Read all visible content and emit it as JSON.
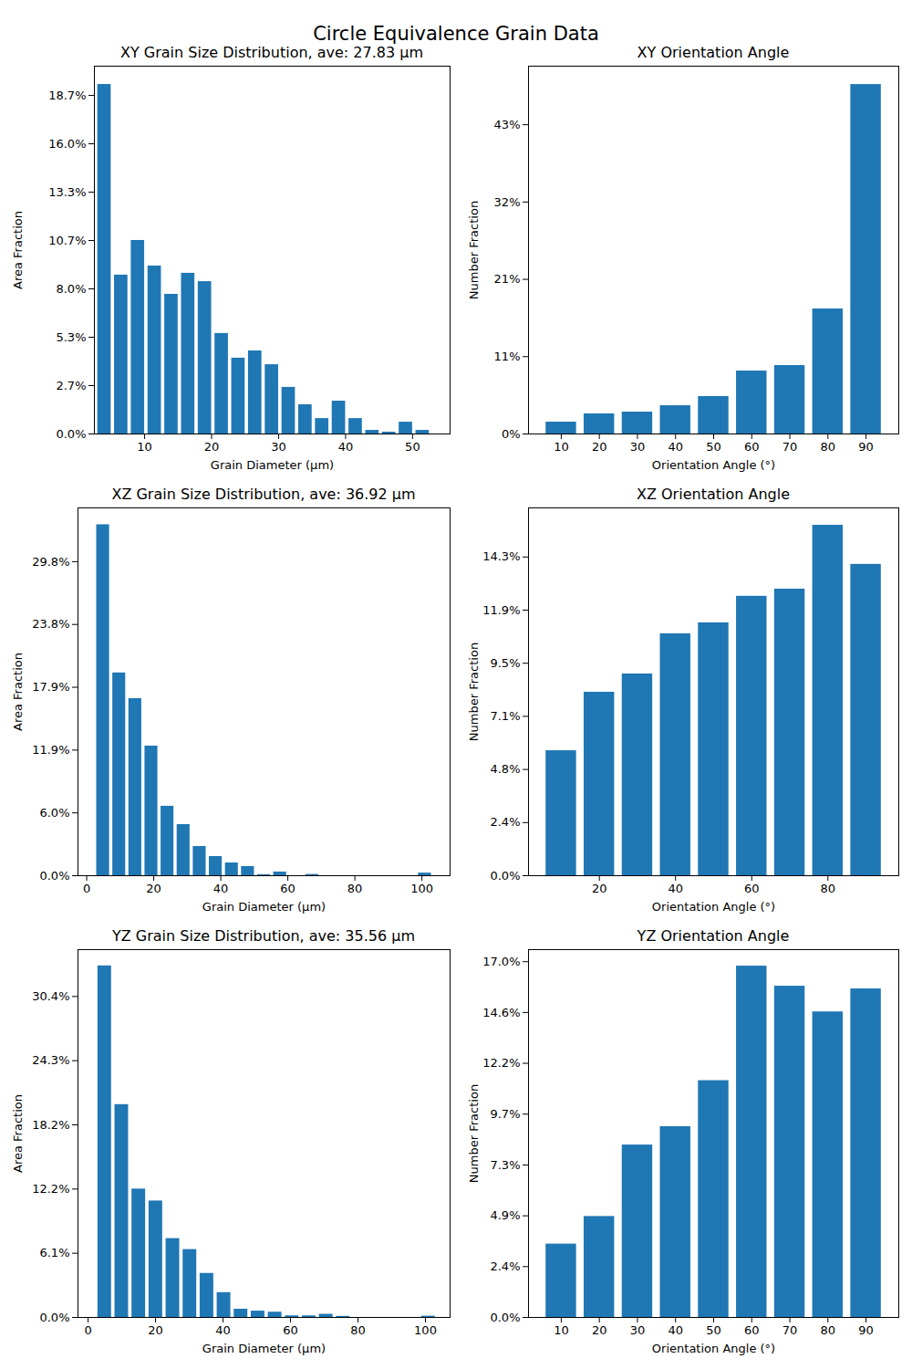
{
  "title": "Circle Equivalence Grain Data",
  "chart_data": [
    {
      "type": "histogram",
      "title": "XY Grain Size Distribution, ave: 27.83 µm",
      "xlabel": "Grain Diameter (µm)",
      "ylabel": "Area Fraction",
      "color": "#1f77b4",
      "bins": [
        2.75,
        5.25,
        7.75,
        10.25,
        12.75,
        15.25,
        17.75,
        20.25,
        22.75,
        25.25,
        27.75,
        30.25,
        32.75,
        35.25,
        37.75,
        40.25,
        42.75,
        45.25,
        47.75,
        50.25,
        52.75
      ],
      "values": [
        19.27,
        8.76,
        10.67,
        9.26,
        7.7,
        8.86,
        8.4,
        5.54,
        4.18,
        4.58,
        3.82,
        2.57,
        1.61,
        0.85,
        1.81,
        0.85,
        0.2,
        0.1,
        0.65,
        0.2
      ],
      "xlim": [
        2.5,
        55.6
      ],
      "xticks": [
        10,
        20,
        30,
        40,
        50
      ],
      "ylim": [
        0,
        20.28
      ],
      "yticks": [
        {
          "value": 0,
          "label": "0.0%"
        },
        {
          "value": 2.667,
          "label": "2.7%"
        },
        {
          "value": 5.333,
          "label": "5.3%"
        },
        {
          "value": 8,
          "label": "8.0%"
        },
        {
          "value": 10.667,
          "label": "10.7%"
        },
        {
          "value": 13.333,
          "label": "13.3%"
        },
        {
          "value": 16,
          "label": "16.0%"
        },
        {
          "value": 18.667,
          "label": "18.7%"
        }
      ]
    },
    {
      "type": "histogram",
      "title": "XY Orientation Angle",
      "xlabel": "Orientation Angle (°)",
      "ylabel": "Number Fraction",
      "color": "#1f77b4",
      "bins": [
        5,
        15,
        25,
        35,
        45,
        55,
        65,
        75,
        85,
        95
      ],
      "values": [
        1.64,
        2.78,
        3.03,
        3.91,
        5.18,
        8.71,
        9.47,
        17.3,
        48.36
      ],
      "xlim": [
        1.4,
        98.6
      ],
      "xticks": [
        10,
        20,
        30,
        40,
        50,
        60,
        70,
        80,
        90
      ],
      "ylim": [
        0,
        50.9
      ],
      "yticks": [
        {
          "value": 0,
          "label": "0%"
        },
        {
          "value": 10.7,
          "label": "11%"
        },
        {
          "value": 21.4,
          "label": "21%"
        },
        {
          "value": 32.1,
          "label": "32%"
        },
        {
          "value": 42.8,
          "label": "43%"
        }
      ]
    },
    {
      "type": "histogram",
      "title": "XZ Grain Size Distribution, ave: 36.92 µm",
      "xlabel": "Grain Diameter (µm)",
      "ylabel": "Area Fraction",
      "color": "#1f77b4",
      "bins": [
        2.5,
        7.3,
        12.1,
        16.9,
        21.7,
        26.5,
        31.3,
        36.1,
        40.9,
        45.7,
        50.5,
        55.3,
        60.1,
        64.9,
        69.7,
        74.5,
        79.3,
        84.1,
        88.9,
        93.7,
        98.5,
        103.3
      ],
      "values": [
        33.3,
        19.24,
        16.8,
        12.3,
        6.59,
        4.85,
        2.77,
        1.82,
        1.21,
        0.87,
        0.1,
        0.35,
        0,
        0.12,
        0,
        0,
        0,
        0,
        0,
        0,
        0.25
      ],
      "xlim": [
        -2.6,
        108.4
      ],
      "xticks": [
        0,
        20,
        40,
        60,
        80,
        100
      ],
      "ylim": [
        0,
        34.9
      ],
      "yticks": [
        {
          "value": 0,
          "label": "0.0%"
        },
        {
          "value": 5.96,
          "label": "6.0%"
        },
        {
          "value": 11.92,
          "label": "11.9%"
        },
        {
          "value": 17.88,
          "label": "17.9%"
        },
        {
          "value": 23.84,
          "label": "23.8%"
        },
        {
          "value": 29.8,
          "label": "29.8%"
        }
      ]
    },
    {
      "type": "histogram",
      "title": "XZ Orientation Angle",
      "xlabel": "Orientation Angle (°)",
      "ylabel": "Number Fraction",
      "color": "#1f77b4",
      "bins": [
        5,
        15,
        25,
        35,
        45,
        55,
        65,
        75,
        85,
        95
      ],
      "values": [
        5.6,
        8.22,
        9.04,
        10.84,
        11.33,
        12.52,
        12.84,
        15.7,
        13.95
      ],
      "xlim": [
        1.4,
        98.6
      ],
      "xticks": [
        20,
        40,
        60,
        80
      ],
      "ylim": [
        0,
        16.48
      ],
      "yticks": [
        {
          "value": 0,
          "label": "0.0%"
        },
        {
          "value": 2.38,
          "label": "2.4%"
        },
        {
          "value": 4.76,
          "label": "4.8%"
        },
        {
          "value": 7.14,
          "label": "7.1%"
        },
        {
          "value": 9.52,
          "label": "9.5%"
        },
        {
          "value": 11.9,
          "label": "11.9%"
        },
        {
          "value": 14.28,
          "label": "14.3%"
        }
      ]
    },
    {
      "type": "histogram",
      "title": "YZ Grain Size Distribution, ave: 35.56 µm",
      "xlabel": "Grain Diameter (µm)",
      "ylabel": "Area Fraction",
      "color": "#1f77b4",
      "bins": [
        2.4,
        7.45,
        12.5,
        17.55,
        22.6,
        27.65,
        32.7,
        37.75,
        42.8,
        47.85,
        52.9,
        57.95,
        63,
        68.05,
        73.1,
        78.15,
        83.2,
        88.25,
        93.3,
        98.35,
        103.4
      ],
      "values": [
        33.3,
        20.16,
        12.16,
        11.03,
        7.47,
        6.43,
        4.17,
        2.35,
        0.78,
        0.6,
        0.5,
        0.15,
        0.15,
        0.3,
        0.1,
        0,
        0,
        0,
        0,
        0.12
      ],
      "xlim": [
        -3,
        107.3
      ],
      "xticks": [
        0,
        20,
        40,
        60,
        80,
        100
      ],
      "ylim": [
        0,
        34.84
      ],
      "yticks": [
        {
          "value": 0,
          "label": "0.0%"
        },
        {
          "value": 6.08,
          "label": "6.1%"
        },
        {
          "value": 12.16,
          "label": "12.2%"
        },
        {
          "value": 18.24,
          "label": "18.2%"
        },
        {
          "value": 24.32,
          "label": "24.3%"
        },
        {
          "value": 30.4,
          "label": "30.4%"
        }
      ]
    },
    {
      "type": "histogram",
      "title": "YZ Orientation Angle",
      "xlabel": "Orientation Angle (°)",
      "ylabel": "Number Fraction",
      "color": "#1f77b4",
      "bins": [
        5,
        15,
        25,
        35,
        45,
        55,
        65,
        75,
        85,
        95
      ],
      "values": [
        3.51,
        4.83,
        8.25,
        9.13,
        11.33,
        16.81,
        15.85,
        14.62,
        15.72
      ],
      "xlim": [
        1.4,
        98.6
      ],
      "xticks": [
        10,
        20,
        30,
        40,
        50,
        60,
        70,
        80,
        90
      ],
      "ylim": [
        0,
        17.6
      ],
      "yticks": [
        {
          "value": 0,
          "label": "0.0%"
        },
        {
          "value": 2.432,
          "label": "2.4%"
        },
        {
          "value": 4.864,
          "label": "4.9%"
        },
        {
          "value": 7.296,
          "label": "7.3%"
        },
        {
          "value": 9.728,
          "label": "9.7%"
        },
        {
          "value": 12.16,
          "label": "12.2%"
        },
        {
          "value": 14.592,
          "label": "14.6%"
        },
        {
          "value": 17.024,
          "label": "17.0%"
        }
      ]
    }
  ]
}
